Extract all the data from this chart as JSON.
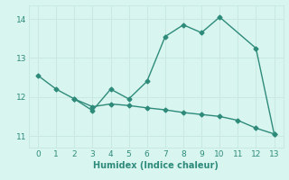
{
  "line1_x": [
    0,
    1,
    2,
    3,
    4,
    5,
    6,
    7,
    8,
    9,
    10,
    12,
    13
  ],
  "line1_y": [
    12.55,
    12.2,
    11.95,
    11.65,
    12.2,
    11.95,
    12.4,
    13.55,
    13.85,
    13.65,
    14.05,
    13.25,
    11.05
  ],
  "line2_x": [
    2,
    3,
    4,
    5,
    6,
    7,
    8,
    9,
    10,
    11,
    12,
    13
  ],
  "line2_y": [
    11.95,
    11.75,
    11.82,
    11.78,
    11.72,
    11.67,
    11.6,
    11.55,
    11.5,
    11.4,
    11.2,
    11.05
  ],
  "line_color": "#2e8b7a",
  "bg_color": "#d8f5f0",
  "grid_color": "#c8e8e2",
  "xlabel": "Humidex (Indice chaleur)",
  "xlim": [
    -0.5,
    13.5
  ],
  "ylim": [
    10.7,
    14.35
  ],
  "xticks": [
    0,
    1,
    2,
    3,
    4,
    5,
    6,
    7,
    8,
    9,
    10,
    11,
    12,
    13
  ],
  "yticks": [
    11,
    12,
    13,
    14
  ],
  "marker": "D",
  "markersize": 2.5,
  "linewidth": 1.0
}
